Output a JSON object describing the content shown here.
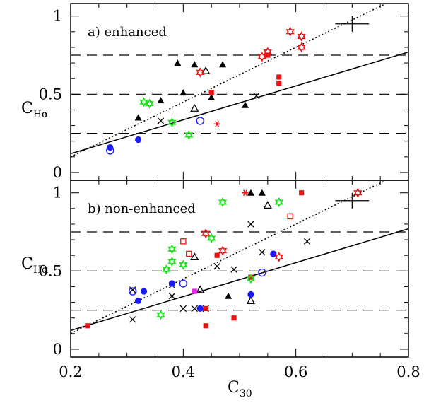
{
  "chart_data": {
    "type": "scatter",
    "xlabel_main": "C",
    "xlabel_sub": "30",
    "ylabel_main": "C",
    "ylabel_sub": "Hα",
    "xlim": [
      0.2,
      0.8
    ],
    "ylim": [
      -0.05,
      1.08
    ],
    "x_ticks": [
      0.2,
      0.4,
      0.6,
      0.8
    ],
    "x_tick_labels": [
      "0.2",
      "0.4",
      "0.6",
      "0.8"
    ],
    "y_ticks": [
      0,
      0.5,
      1
    ],
    "y_tick_labels": [
      "0",
      "0.5",
      "1"
    ],
    "dashed_levels": [
      0.25,
      0.5,
      0.75
    ],
    "solid_line": {
      "x": [
        0.2,
        0.8
      ],
      "y": [
        0.12,
        0.77
      ]
    },
    "dotted_line": {
      "x": [
        0.2,
        0.8
      ],
      "y": [
        0.1,
        1.15
      ]
    },
    "error_cross": {
      "x": 0.7,
      "y": 0.95,
      "dx": 0.03,
      "dy": 0.05
    },
    "panels": [
      {
        "label": "a) enhanced",
        "points": [
          {
            "m": "tri",
            "x": 0.32,
            "y": 0.35
          },
          {
            "m": "tri",
            "x": 0.36,
            "y": 0.46
          },
          {
            "m": "tri",
            "x": 0.39,
            "y": 0.7
          },
          {
            "m": "tri",
            "x": 0.4,
            "y": 0.51
          },
          {
            "m": "tri",
            "x": 0.42,
            "y": 0.69
          },
          {
            "m": "tri",
            "x": 0.45,
            "y": 0.48
          },
          {
            "m": "tri",
            "x": 0.47,
            "y": 0.69
          },
          {
            "m": "tri",
            "x": 0.51,
            "y": 0.43
          },
          {
            "m": "otri",
            "x": 0.42,
            "y": 0.41
          },
          {
            "m": "otri",
            "x": 0.44,
            "y": 0.65
          },
          {
            "m": "cross",
            "x": 0.36,
            "y": 0.33
          },
          {
            "m": "cross",
            "x": 0.53,
            "y": 0.49
          },
          {
            "m": "dot",
            "x": 0.27,
            "y": 0.16
          },
          {
            "m": "dot",
            "x": 0.32,
            "y": 0.21
          },
          {
            "m": "odot",
            "x": 0.27,
            "y": 0.14
          },
          {
            "m": "odot",
            "x": 0.43,
            "y": 0.33
          },
          {
            "m": "sq",
            "x": 0.45,
            "y": 0.51
          },
          {
            "m": "sq",
            "x": 0.55,
            "y": 0.75
          },
          {
            "m": "sq",
            "x": 0.57,
            "y": 0.61
          },
          {
            "m": "sq",
            "x": 0.57,
            "y": 0.57
          },
          {
            "m": "rstar",
            "x": 0.43,
            "y": 0.64
          },
          {
            "m": "rstar",
            "x": 0.54,
            "y": 0.74
          },
          {
            "m": "rstar",
            "x": 0.55,
            "y": 0.77
          },
          {
            "m": "rstar",
            "x": 0.59,
            "y": 0.9
          },
          {
            "m": "rstar",
            "x": 0.61,
            "y": 0.87
          },
          {
            "m": "rstar",
            "x": 0.61,
            "y": 0.8
          },
          {
            "m": "gstar",
            "x": 0.33,
            "y": 0.45
          },
          {
            "m": "gstar",
            "x": 0.34,
            "y": 0.44
          },
          {
            "m": "gstar",
            "x": 0.38,
            "y": 0.32
          },
          {
            "m": "gstar",
            "x": 0.41,
            "y": 0.24
          },
          {
            "m": "ast",
            "x": 0.46,
            "y": 0.31
          }
        ]
      },
      {
        "label": "b) non-enhanced",
        "points": [
          {
            "m": "tri",
            "x": 0.48,
            "y": 0.34
          },
          {
            "m": "tri",
            "x": 0.52,
            "y": 1.0
          },
          {
            "m": "tri",
            "x": 0.54,
            "y": 1.0
          },
          {
            "m": "otri",
            "x": 0.42,
            "y": 0.59
          },
          {
            "m": "otri",
            "x": 0.43,
            "y": 0.38
          },
          {
            "m": "otri",
            "x": 0.52,
            "y": 0.31
          },
          {
            "m": "otri",
            "x": 0.55,
            "y": 0.92
          },
          {
            "m": "cross",
            "x": 0.31,
            "y": 0.38
          },
          {
            "m": "cross",
            "x": 0.31,
            "y": 0.19
          },
          {
            "m": "cross",
            "x": 0.38,
            "y": 0.34
          },
          {
            "m": "cross",
            "x": 0.38,
            "y": 0.41
          },
          {
            "m": "cross",
            "x": 0.4,
            "y": 0.26
          },
          {
            "m": "cross",
            "x": 0.42,
            "y": 0.26
          },
          {
            "m": "cross",
            "x": 0.44,
            "y": 0.26
          },
          {
            "m": "cross",
            "x": 0.46,
            "y": 0.53
          },
          {
            "m": "cross",
            "x": 0.49,
            "y": 0.51
          },
          {
            "m": "cross",
            "x": 0.52,
            "y": 0.8
          },
          {
            "m": "cross",
            "x": 0.54,
            "y": 0.62
          },
          {
            "m": "cross",
            "x": 0.62,
            "y": 0.69
          },
          {
            "m": "dot",
            "x": 0.32,
            "y": 0.31
          },
          {
            "m": "dot",
            "x": 0.33,
            "y": 0.37
          },
          {
            "m": "dot",
            "x": 0.38,
            "y": 0.42
          },
          {
            "m": "dot",
            "x": 0.43,
            "y": 0.26
          },
          {
            "m": "dot",
            "x": 0.52,
            "y": 0.35
          },
          {
            "m": "dot",
            "x": 0.56,
            "y": 0.61
          },
          {
            "m": "odot",
            "x": 0.31,
            "y": 0.37
          },
          {
            "m": "odot",
            "x": 0.4,
            "y": 0.42
          },
          {
            "m": "odot",
            "x": 0.54,
            "y": 0.49
          },
          {
            "m": "sq",
            "x": 0.23,
            "y": 0.15
          },
          {
            "m": "sq",
            "x": 0.44,
            "y": 0.15
          },
          {
            "m": "sq",
            "x": 0.44,
            "y": 0.26
          },
          {
            "m": "sq",
            "x": 0.46,
            "y": 0.6
          },
          {
            "m": "sq",
            "x": 0.49,
            "y": 0.2
          },
          {
            "m": "sq",
            "x": 0.52,
            "y": 0.46
          },
          {
            "m": "sq",
            "x": 0.61,
            "y": 1.0
          },
          {
            "m": "osq",
            "x": 0.4,
            "y": 0.69
          },
          {
            "m": "osq",
            "x": 0.41,
            "y": 0.61
          },
          {
            "m": "osq",
            "x": 0.59,
            "y": 0.85
          },
          {
            "m": "msq",
            "x": 0.42,
            "y": 0.37
          },
          {
            "m": "rstar",
            "x": 0.44,
            "y": 0.74
          },
          {
            "m": "rstar",
            "x": 0.47,
            "y": 0.63
          },
          {
            "m": "rstar",
            "x": 0.57,
            "y": 0.59
          },
          {
            "m": "rstar",
            "x": 0.71,
            "y": 1.0
          },
          {
            "m": "gstar",
            "x": 0.36,
            "y": 0.22
          },
          {
            "m": "gstar",
            "x": 0.37,
            "y": 0.51
          },
          {
            "m": "gstar",
            "x": 0.38,
            "y": 0.64
          },
          {
            "m": "gstar",
            "x": 0.38,
            "y": 0.56
          },
          {
            "m": "gstar",
            "x": 0.4,
            "y": 0.54
          },
          {
            "m": "gstar",
            "x": 0.45,
            "y": 0.71
          },
          {
            "m": "gstar",
            "x": 0.47,
            "y": 0.94
          },
          {
            "m": "gstar",
            "x": 0.52,
            "y": 0.45
          },
          {
            "m": "gstar",
            "x": 0.57,
            "y": 0.94
          },
          {
            "m": "ast",
            "x": 0.51,
            "y": 1.0
          }
        ]
      }
    ],
    "colors": {
      "black": "#000000",
      "blue": "#1a1aff",
      "red": "#ee1111",
      "green": "#22dd22",
      "magenta": "#ee22ee"
    }
  }
}
